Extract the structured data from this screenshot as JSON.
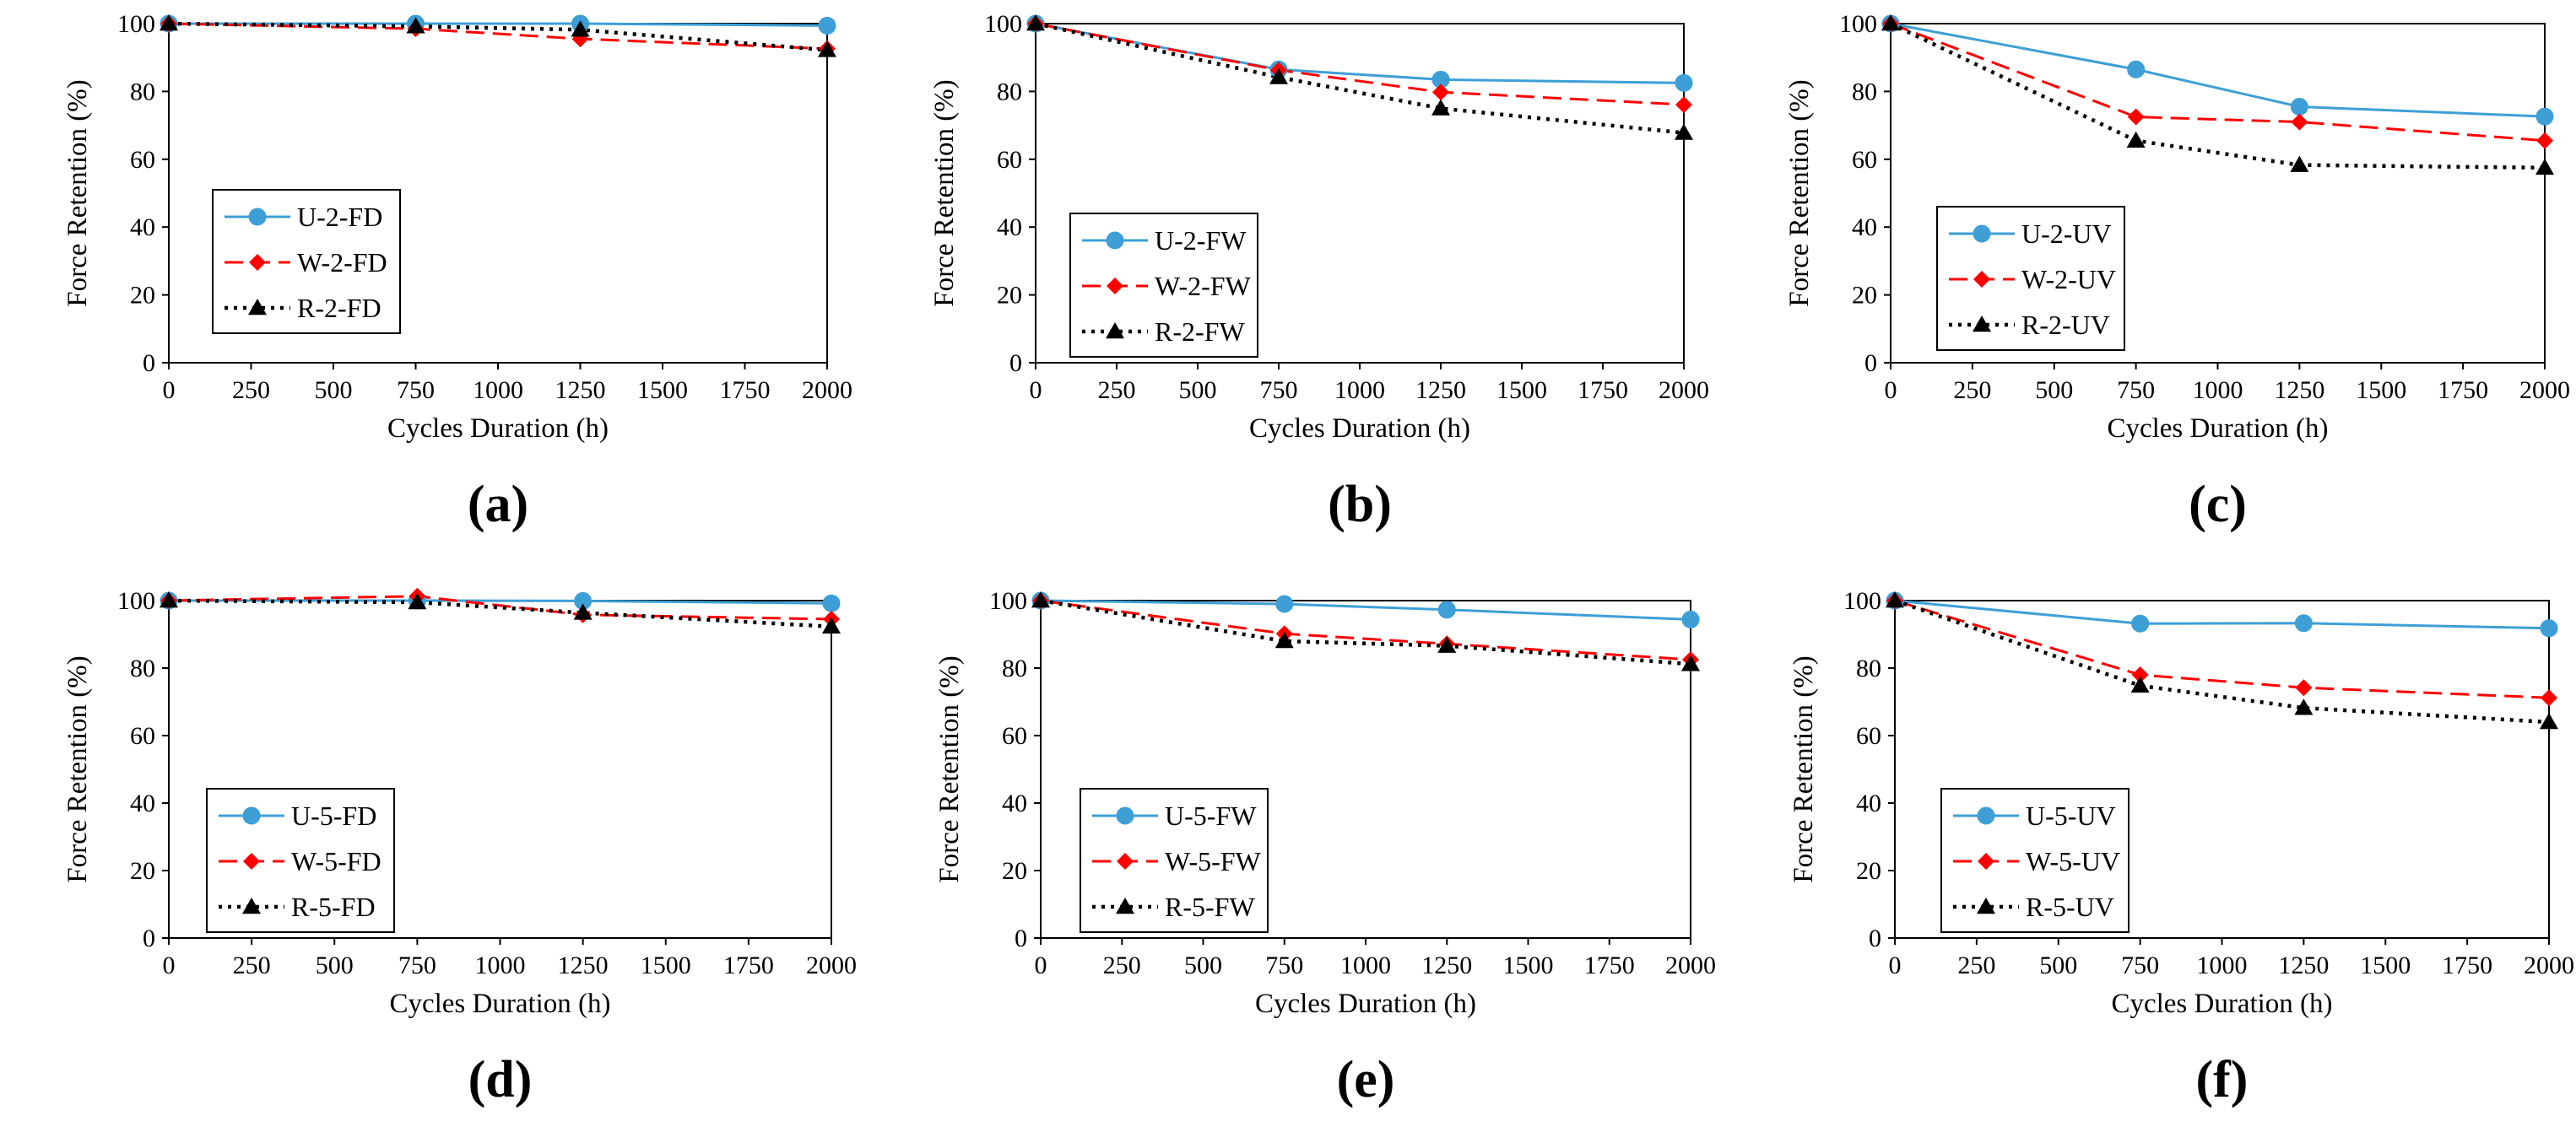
{
  "figure": {
    "colors": {
      "U": "#3D9FD6",
      "W": "#FF0000",
      "R": "#000000"
    }
  },
  "chart_data": [
    {
      "type": "line",
      "panel_label": "(a)",
      "xlabel": "Cycles Duration (h)",
      "ylabel": "Force Retention (%)",
      "xlim": [
        0,
        2000
      ],
      "ylim": [
        0,
        100
      ],
      "x_ticks": [
        "0",
        "250",
        "500",
        "750",
        "1000",
        "1250",
        "1500",
        "1750",
        "2000"
      ],
      "y_ticks": [
        "0",
        "20",
        "40",
        "60",
        "80",
        "100"
      ],
      "x": [
        0,
        750,
        1250,
        2000
      ],
      "series": [
        {
          "key": "U",
          "name": "U-2-FD",
          "values": [
            100,
            100,
            100,
            99.4
          ]
        },
        {
          "key": "W",
          "name": "W-2-FD",
          "values": [
            100,
            98.5,
            95.5,
            92.6
          ]
        },
        {
          "key": "R",
          "name": "R-2-FD",
          "values": [
            100,
            99.2,
            98.2,
            92.2
          ]
        }
      ]
    },
    {
      "type": "line",
      "panel_label": "(b)",
      "xlabel": "Cycles Duration (h)",
      "ylabel": "Force Retention (%)",
      "xlim": [
        0,
        2000
      ],
      "ylim": [
        0,
        100
      ],
      "x_ticks": [
        "0",
        "250",
        "500",
        "750",
        "1000",
        "1250",
        "1500",
        "1750",
        "2000"
      ],
      "y_ticks": [
        "0",
        "20",
        "40",
        "60",
        "80",
        "100"
      ],
      "x": [
        0,
        750,
        1250,
        2000
      ],
      "series": [
        {
          "key": "U",
          "name": "U-2-FW",
          "values": [
            100,
            86.5,
            83.5,
            82.5
          ]
        },
        {
          "key": "W",
          "name": "W-2-FW",
          "values": [
            100,
            86.3,
            79.8,
            76.1
          ]
        },
        {
          "key": "R",
          "name": "R-2-FW",
          "values": [
            100,
            84.2,
            75,
            67.8
          ]
        }
      ]
    },
    {
      "type": "line",
      "panel_label": "(c)",
      "xlabel": "Cycles Duration (h)",
      "ylabel": "Force Retention (%)",
      "xlim": [
        0,
        2000
      ],
      "ylim": [
        0,
        100
      ],
      "x_ticks": [
        "0",
        "250",
        "500",
        "750",
        "1000",
        "1250",
        "1500",
        "1750",
        "2000"
      ],
      "y_ticks": [
        "0",
        "20",
        "40",
        "60",
        "80",
        "100"
      ],
      "x": [
        0,
        750,
        1250,
        2000
      ],
      "series": [
        {
          "key": "U",
          "name": "U-2-UV",
          "values": [
            100,
            86.5,
            75.5,
            72.6
          ]
        },
        {
          "key": "W",
          "name": "W-2-UV",
          "values": [
            100,
            72.5,
            71,
            65.5
          ]
        },
        {
          "key": "R",
          "name": "R-2-UV",
          "values": [
            100,
            65.5,
            58.3,
            57.5
          ]
        }
      ]
    },
    {
      "type": "line",
      "panel_label": "(d)",
      "xlabel": "Cycles Duration (h)",
      "ylabel": "Force Retention (%)",
      "xlim": [
        0,
        2000
      ],
      "ylim": [
        0,
        100
      ],
      "x_ticks": [
        "0",
        "250",
        "500",
        "750",
        "1000",
        "1250",
        "1500",
        "1750",
        "2000"
      ],
      "y_ticks": [
        "0",
        "20",
        "40",
        "60",
        "80",
        "100"
      ],
      "x": [
        0,
        750,
        1250,
        2000
      ],
      "series": [
        {
          "key": "U",
          "name": "U-5-FD",
          "values": [
            100,
            100,
            99.9,
            99.2
          ]
        },
        {
          "key": "W",
          "name": "W-5-FD",
          "values": [
            100,
            101.3,
            95.8,
            94.5
          ]
        },
        {
          "key": "R",
          "name": "R-5-FD",
          "values": [
            100,
            99.5,
            96.4,
            92.3
          ]
        }
      ]
    },
    {
      "type": "line",
      "panel_label": "(e)",
      "xlabel": "Cycles Duration (h)",
      "ylabel": "Force Retention (%)",
      "xlim": [
        0,
        2000
      ],
      "ylim": [
        0,
        100
      ],
      "x_ticks": [
        "0",
        "250",
        "500",
        "750",
        "1000",
        "1250",
        "1500",
        "1750",
        "2000"
      ],
      "y_ticks": [
        "0",
        "20",
        "40",
        "60",
        "80",
        "100"
      ],
      "x": [
        0,
        750,
        1250,
        2000
      ],
      "series": [
        {
          "key": "U",
          "name": "U-5-FW",
          "values": [
            100,
            99,
            97.3,
            94.4
          ]
        },
        {
          "key": "W",
          "name": "W-5-FW",
          "values": [
            100,
            90.2,
            87.2,
            82.5
          ]
        },
        {
          "key": "R",
          "name": "R-5-FW",
          "values": [
            100,
            88,
            86.6,
            81.2
          ]
        }
      ]
    },
    {
      "type": "line",
      "panel_label": "(f)",
      "xlabel": "Cycles Duration (h)",
      "ylabel": "Force Retention (%)",
      "xlim": [
        0,
        2000
      ],
      "ylim": [
        0,
        100
      ],
      "x_ticks": [
        "0",
        "250",
        "500",
        "750",
        "1000",
        "1250",
        "1500",
        "1750",
        "2000"
      ],
      "y_ticks": [
        "0",
        "20",
        "40",
        "60",
        "80",
        "100"
      ],
      "x": [
        0,
        750,
        1250,
        2000
      ],
      "series": [
        {
          "key": "U",
          "name": "U-5-UV",
          "values": [
            100,
            93.2,
            93.3,
            91.8
          ]
        },
        {
          "key": "W",
          "name": "W-5-UV",
          "values": [
            100,
            78,
            74.2,
            71.2
          ]
        },
        {
          "key": "R",
          "name": "R-5-UV",
          "values": [
            100,
            74.8,
            68.2,
            64
          ]
        }
      ]
    }
  ]
}
